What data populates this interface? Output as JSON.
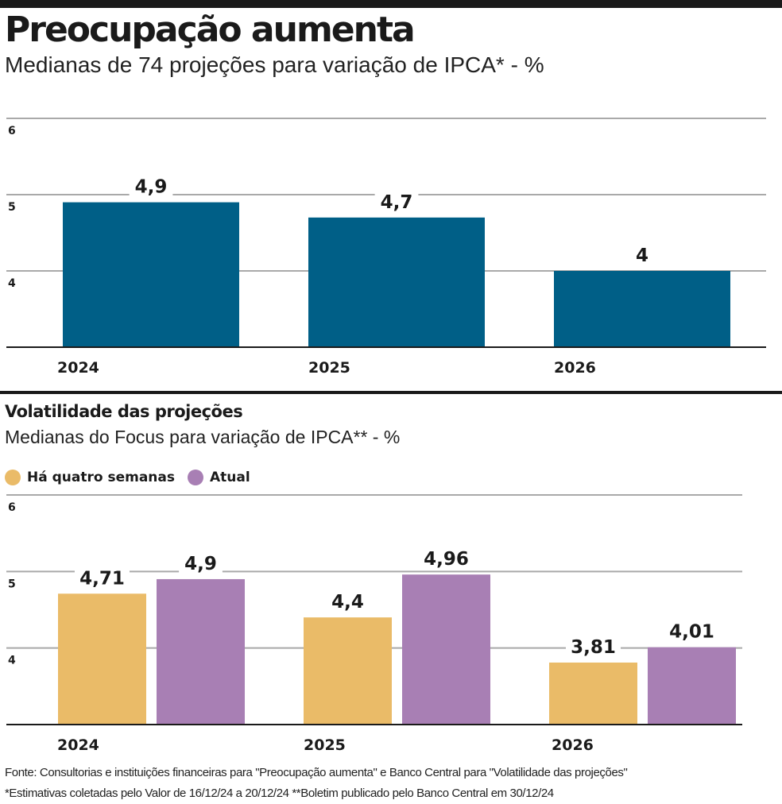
{
  "title": "Preocupação aumenta",
  "subtitle": "Medianas de 74 projeções para variação de IPCA* - %",
  "section2_title": "Volatilidade das projeções",
  "section2_subtitle": "Medianas do Focus para variação de  IPCA** - %",
  "footer": {
    "line1": "Fonte: Consultorias e instituições financeiras para \"Preocupação aumenta\" e  Banco Central para \"Volatilidade das projeções\"",
    "line2": "*Estimativas coletadas pelo Valor de 16/12/24 a 20/12/24 **Boletim publicado pelo Banco Central em 30/12/24"
  },
  "colors": {
    "bar_blue": "#005f87",
    "bar_yellow": "#eabb68",
    "bar_purple": "#a87fb4",
    "grid": "#a9a9a9",
    "axis": "#1a1a1a"
  },
  "chart_data": [
    {
      "type": "bar",
      "title": "Preocupação aumenta",
      "categories": [
        "2024",
        "2025",
        "2026"
      ],
      "values": [
        4.9,
        4.7,
        4
      ],
      "value_labels": [
        "4,9",
        "4,7",
        "4"
      ],
      "ylim": [
        3,
        6
      ],
      "yticks": [
        "4",
        "5",
        "6"
      ],
      "grid": true
    },
    {
      "type": "bar",
      "title": "Volatilidade das projeções",
      "categories": [
        "2024",
        "2025",
        "2026"
      ],
      "series": [
        {
          "name": "Há quatro semanas",
          "values": [
            4.71,
            4.4,
            3.81
          ],
          "value_labels": [
            "4,71",
            "4,4",
            "3,81"
          ],
          "color": "#eabb68"
        },
        {
          "name": "Atual",
          "values": [
            4.9,
            4.96,
            4.01
          ],
          "value_labels": [
            "4,9",
            "4,96",
            "4,01"
          ],
          "color": "#a87fb4"
        }
      ],
      "ylim": [
        3,
        6
      ],
      "yticks": [
        "4",
        "5",
        "6"
      ],
      "grid": true,
      "legend": "top-left"
    }
  ]
}
